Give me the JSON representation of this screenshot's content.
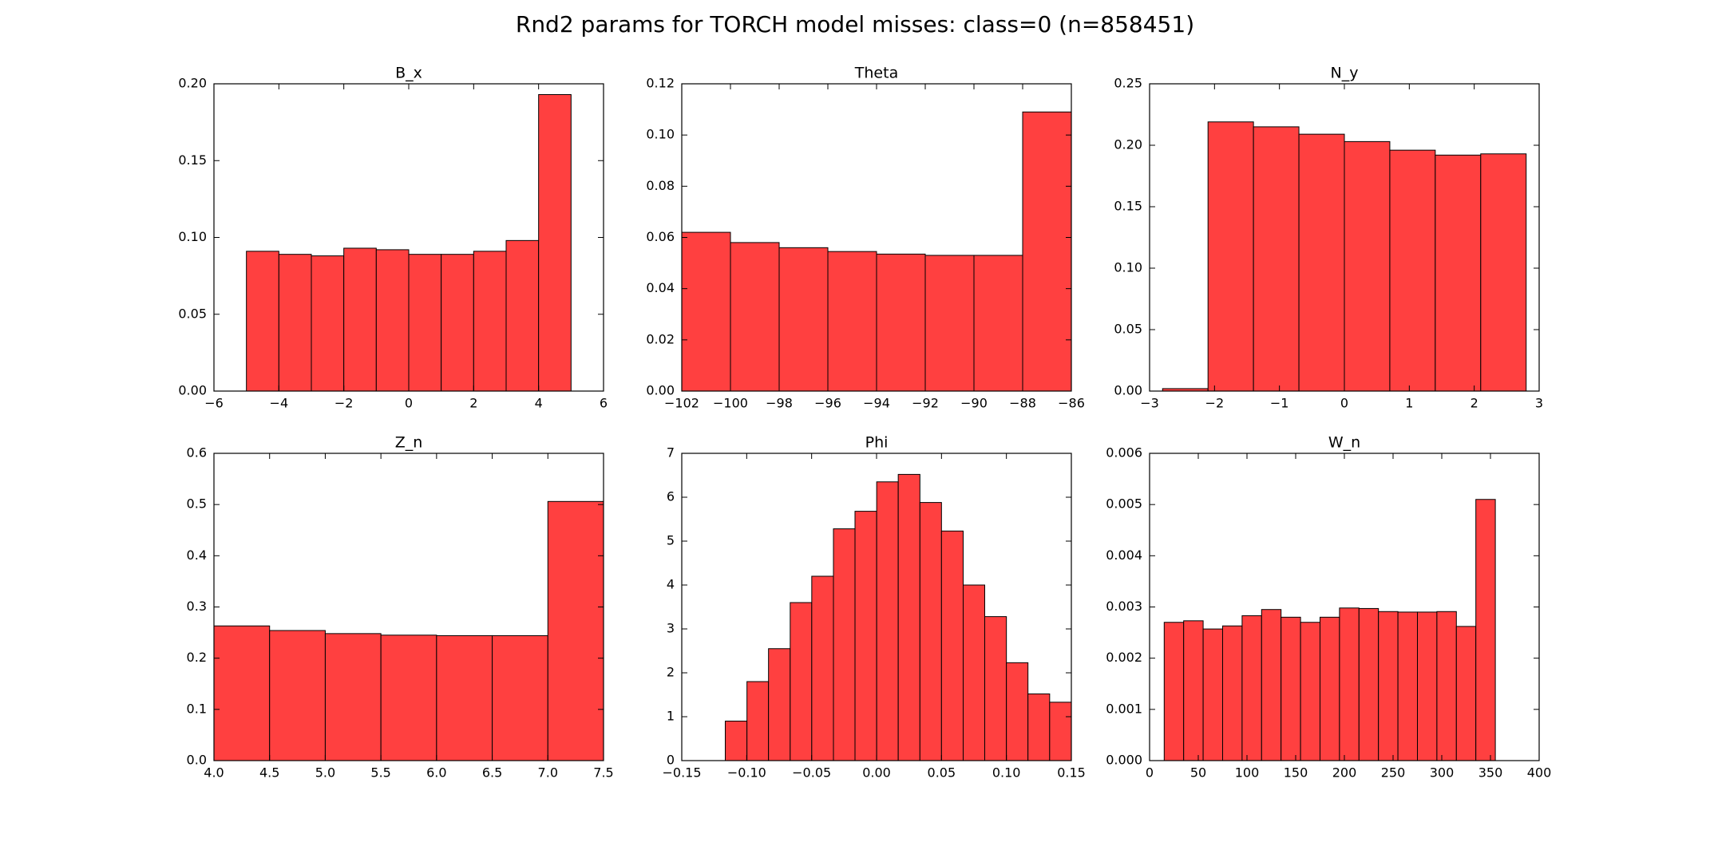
{
  "title": "Rnd2 params for TORCH model misses: class=0 (n=858451)",
  "chart_data": [
    {
      "type": "histogram",
      "title": "B_x",
      "color": "#ff4040",
      "bins": [
        -5,
        -4,
        -3,
        -2,
        -1,
        0,
        1,
        2,
        3,
        4,
        5
      ],
      "values": [
        0.091,
        0.089,
        0.088,
        0.093,
        0.092,
        0.089,
        0.089,
        0.091,
        0.098,
        0.193
      ],
      "xlim": [
        -6,
        6
      ],
      "xticks": [
        {
          "value": -6,
          "label": "−6"
        },
        {
          "value": -4,
          "label": "−4"
        },
        {
          "value": -2,
          "label": "−2"
        },
        0,
        2,
        4,
        6
      ],
      "ylim": [
        0,
        0.2
      ],
      "yticks": [
        {
          "value": 0,
          "label": "0.00"
        },
        {
          "value": 0.05,
          "label": "0.05"
        },
        {
          "value": 0.1,
          "label": "0.10"
        },
        {
          "value": 0.15,
          "label": "0.15"
        },
        {
          "value": 0.2,
          "label": "0.20"
        }
      ]
    },
    {
      "type": "histogram",
      "title": "Theta",
      "color": "#ff4040",
      "bins": [
        -102,
        -100,
        -98,
        -96,
        -94,
        -92,
        -90,
        -88,
        -86
      ],
      "values": [
        0.062,
        0.058,
        0.056,
        0.0545,
        0.0535,
        0.053,
        0.053,
        0.109
      ],
      "xlim": [
        -102,
        -86
      ],
      "xticks": [
        {
          "value": -102,
          "label": "−102"
        },
        {
          "value": -100,
          "label": "−100"
        },
        {
          "value": -98,
          "label": "−98"
        },
        {
          "value": -96,
          "label": "−96"
        },
        {
          "value": -94,
          "label": "−94"
        },
        {
          "value": -92,
          "label": "−92"
        },
        {
          "value": -90,
          "label": "−90"
        },
        {
          "value": -88,
          "label": "−88"
        },
        {
          "value": -86,
          "label": "−86"
        }
      ],
      "ylim": [
        0,
        0.12
      ],
      "yticks": [
        {
          "value": 0,
          "label": "0.00"
        },
        {
          "value": 0.02,
          "label": "0.02"
        },
        {
          "value": 0.04,
          "label": "0.04"
        },
        {
          "value": 0.06,
          "label": "0.06"
        },
        {
          "value": 0.08,
          "label": "0.08"
        },
        {
          "value": 0.1,
          "label": "0.10"
        },
        {
          "value": 0.12,
          "label": "0.12"
        }
      ]
    },
    {
      "type": "histogram",
      "title": "N_y",
      "color": "#ff4040",
      "bins": [
        -2.8,
        -2.1,
        -1.4,
        -0.7,
        0,
        0.7,
        1.4,
        2.1,
        2.8
      ],
      "values": [
        0.002,
        0.219,
        0.215,
        0.209,
        0.203,
        0.196,
        0.192,
        0.193
      ],
      "xlim": [
        -3,
        3
      ],
      "xticks": [
        {
          "value": -3,
          "label": "−3"
        },
        {
          "value": -2,
          "label": "−2"
        },
        {
          "value": -1,
          "label": "−1"
        },
        0,
        1,
        2,
        3
      ],
      "ylim": [
        0,
        0.25
      ],
      "yticks": [
        {
          "value": 0,
          "label": "0.00"
        },
        {
          "value": 0.05,
          "label": "0.05"
        },
        {
          "value": 0.1,
          "label": "0.10"
        },
        {
          "value": 0.15,
          "label": "0.15"
        },
        {
          "value": 0.2,
          "label": "0.20"
        },
        {
          "value": 0.25,
          "label": "0.25"
        }
      ]
    },
    {
      "type": "histogram",
      "title": "Z_n",
      "color": "#ff4040",
      "bins": [
        4,
        4.5,
        5,
        5.5,
        6,
        6.5,
        7,
        7.5
      ],
      "values": [
        0.263,
        0.254,
        0.248,
        0.245,
        0.244,
        0.244,
        0.506
      ],
      "xlim": [
        4,
        7.5
      ],
      "xticks": [
        {
          "value": 4,
          "label": "4.0"
        },
        4.5,
        {
          "value": 5,
          "label": "5.0"
        },
        5.5,
        {
          "value": 6,
          "label": "6.0"
        },
        6.5,
        {
          "value": 7,
          "label": "7.0"
        },
        7.5
      ],
      "ylim": [
        0,
        0.6
      ],
      "yticks": [
        {
          "value": 0,
          "label": "0.0"
        },
        0.1,
        0.2,
        0.3,
        0.4,
        0.5,
        0.6
      ]
    },
    {
      "type": "histogram",
      "title": "Phi",
      "color": "#ff4040",
      "bins": [
        -0.1165,
        -0.0998,
        -0.0832,
        -0.0665,
        -0.0499,
        -0.0332,
        -0.0166,
        0.0001,
        0.0167,
        0.0334,
        0.05,
        0.0667,
        0.0833,
        0.1,
        0.1166,
        0.1333,
        0.15
      ],
      "values": [
        0.9,
        1.8,
        2.55,
        3.6,
        4.2,
        5.28,
        5.68,
        6.35,
        6.52,
        5.88,
        5.23,
        4.0,
        3.28,
        2.23,
        1.52,
        1.33
      ],
      "xlim": [
        -0.15,
        0.15
      ],
      "xticks": [
        {
          "value": -0.15,
          "label": "−0.15"
        },
        {
          "value": -0.1,
          "label": "−0.10"
        },
        {
          "value": -0.05,
          "label": "−0.05"
        },
        {
          "value": 0,
          "label": "0.00"
        },
        0.05,
        {
          "value": 0.1,
          "label": "0.10"
        },
        0.15
      ],
      "ylim": [
        0,
        7
      ],
      "yticks": [
        0,
        1,
        2,
        3,
        4,
        5,
        6,
        7
      ]
    },
    {
      "type": "histogram",
      "title": "W_n",
      "color": "#ff4040",
      "bins": [
        15,
        35,
        55,
        75,
        95,
        115,
        135,
        155,
        175,
        195,
        215,
        235,
        255,
        275,
        295,
        315,
        335,
        355
      ],
      "values": [
        0.0027,
        0.00273,
        0.00257,
        0.00263,
        0.00283,
        0.00295,
        0.0028,
        0.0027,
        0.0028,
        0.00298,
        0.00297,
        0.00291,
        0.0029,
        0.0029,
        0.00291,
        0.00262,
        0.0051
      ],
      "xlim": [
        0,
        400
      ],
      "xticks": [
        0,
        50,
        100,
        150,
        200,
        250,
        300,
        350,
        400
      ],
      "ylim": [
        0,
        0.006
      ],
      "yticks": [
        {
          "value": 0,
          "label": "0.000"
        },
        {
          "value": 0.001,
          "label": "0.001"
        },
        {
          "value": 0.002,
          "label": "0.002"
        },
        {
          "value": 0.003,
          "label": "0.003"
        },
        {
          "value": 0.004,
          "label": "0.004"
        },
        {
          "value": 0.005,
          "label": "0.005"
        },
        {
          "value": 0.006,
          "label": "0.006"
        }
      ]
    }
  ]
}
